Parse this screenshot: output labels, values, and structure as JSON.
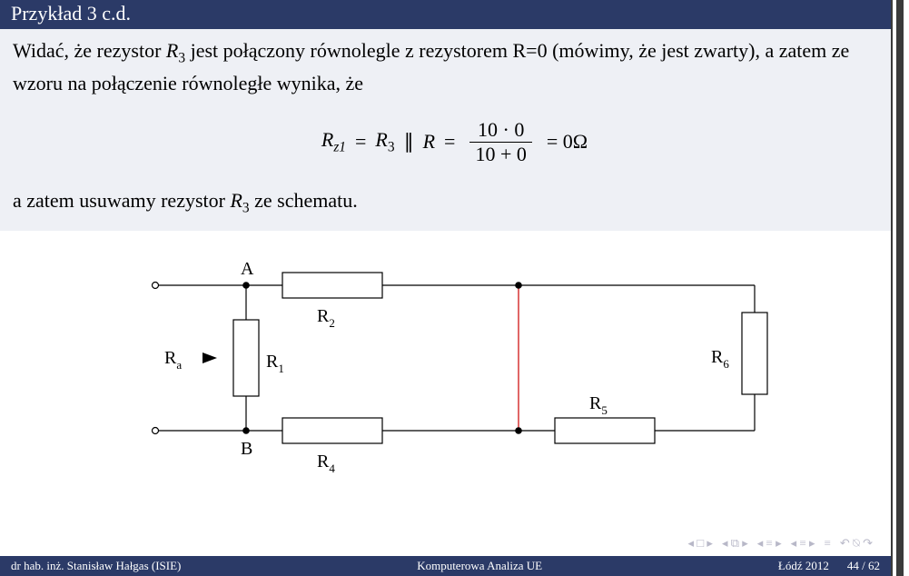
{
  "header": {
    "title": "Przykład 3 c.d."
  },
  "text": {
    "p1a": "Widać, że rezystor ",
    "p1b": " jest połączony równolegle z rezystorem R=0 (mówimy, że jest zwarty), a zatem ze wzoru na połączenie równoległe wynika, że",
    "p2a": "a zatem usuwamy rezystor ",
    "p2b": " ze schematu.",
    "R3": "R",
    "R3sub": "3"
  },
  "equation": {
    "lhs_var": "R",
    "lhs_sub": "z1",
    "eq": " = ",
    "r3": "R",
    "r3sub": "3",
    "parallel": " ∥ ",
    "R": "R",
    "num": "10 · 0",
    "den": "10 + 0",
    "rhs": " = 0Ω"
  },
  "circuit": {
    "labels": {
      "A": "A",
      "B": "B",
      "Ra": "R",
      "Ra_sub": "a",
      "R1": "R",
      "R1_sub": "1",
      "R2": "R",
      "R2_sub": "2",
      "R4": "R",
      "R4_sub": "4",
      "R5": "R",
      "R5_sub": "5",
      "R6": "R",
      "R6_sub": "6"
    },
    "colors": {
      "wire": "#000000",
      "short": "#cc0000",
      "bg": "#ffffff"
    },
    "stroke_width": 1.2,
    "node_radius": 3.2,
    "terminal_radius": 3.5
  },
  "nav": {
    "items": [
      "◂ □ ▸",
      "◂ ⧉ ▸",
      "◂ ≡ ▸",
      "◂ ≡ ▸",
      "≡"
    ],
    "undo": "↶ ⍉ ↷"
  },
  "footer": {
    "left": "dr hab. inż. Stanisław Hałgas (ISIE)",
    "center": "Komputerowa Analiza UE",
    "right_place": "Łódź 2012",
    "right_page": "44 / 62"
  }
}
